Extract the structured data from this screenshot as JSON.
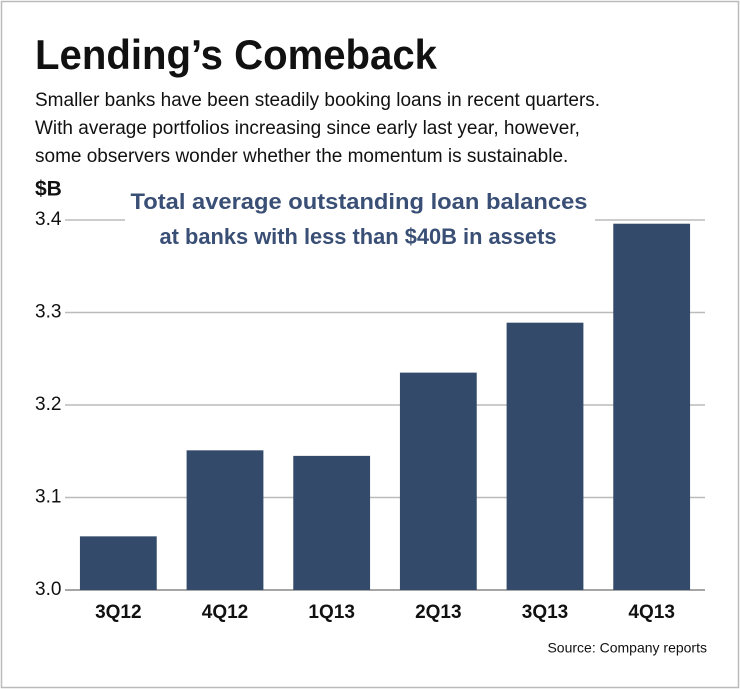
{
  "chart_data": {
    "type": "bar",
    "title": "Lending’s Comeback",
    "subtitle": [
      "Smaller banks have been steadily booking loans in recent quarters.",
      "With average portfolios increasing since early last year, however,",
      "some observers wonder whether the momentum is sustainable."
    ],
    "y_label": "$B",
    "annotation": [
      "Total average outstanding loan balances",
      "at banks with less than $40B in assets"
    ],
    "source": "Source: Company reports",
    "categories": [
      "3Q12",
      "4Q12",
      "1Q13",
      "2Q13",
      "3Q13",
      "4Q13"
    ],
    "values": [
      3.058,
      3.151,
      3.145,
      3.235,
      3.289,
      3.396
    ],
    "color": "#344a6b",
    "ylim": [
      3,
      3.4
    ],
    "yticks": [
      {
        "value": 3,
        "label": "3.0"
      },
      3.1,
      3.2,
      3.3,
      3.4
    ],
    "grid": true
  }
}
